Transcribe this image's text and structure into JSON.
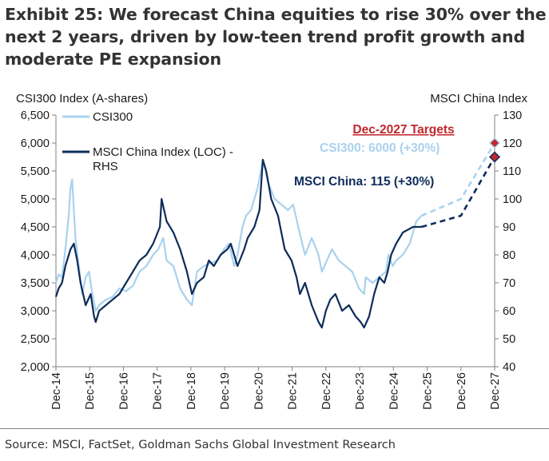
{
  "title_lines": [
    "Exhibit 25: We forecast China equities to rise 30% over the",
    "next 2 years, driven by low-teen trend profit growth and",
    "moderate PE expansion"
  ],
  "source": "Source: MSCI, FactSet, Goldman Sachs Global Investment Research",
  "colors": {
    "csi": "#a9d2ee",
    "msci": "#0e2c5a",
    "target_title": "#c0282d",
    "axis": "#808080"
  },
  "chart_data": {
    "type": "line",
    "left_axis": {
      "label": "CSI300 Index (A-shares)",
      "min": 2000,
      "max": 6500,
      "ticks": [
        "2,000",
        "2,500",
        "3,000",
        "3,500",
        "4,000",
        "4,500",
        "5,000",
        "5,500",
        "6,000",
        "6,500"
      ],
      "tick_values": [
        2000,
        2500,
        3000,
        3500,
        4000,
        4500,
        5000,
        5500,
        6000,
        6500
      ]
    },
    "right_axis": {
      "label": "MSCI China Index",
      "min": 40,
      "max": 130,
      "ticks": [
        "40",
        "50",
        "60",
        "70",
        "80",
        "90",
        "100",
        "110",
        "120",
        "130"
      ],
      "tick_values": [
        40,
        50,
        60,
        70,
        80,
        90,
        100,
        110,
        120,
        130
      ]
    },
    "x_range": [
      2014.92,
      2027.92
    ],
    "x_ticks": [
      "Dec-14",
      "Dec-15",
      "Dec-16",
      "Dec-17",
      "Dec-18",
      "Dec-19",
      "Dec-20",
      "Dec-21",
      "Dec-22",
      "Dec-23",
      "Dec-24",
      "Dec-25",
      "Dec-26",
      "Dec-27"
    ],
    "x_tick_values": [
      2014.92,
      2015.92,
      2016.92,
      2017.92,
      2018.92,
      2019.92,
      2020.92,
      2021.92,
      2022.92,
      2023.92,
      2024.92,
      2025.92,
      2026.92,
      2027.92
    ],
    "legend": [
      "CSI300",
      "MSCI China Index (LOC) - RHS"
    ],
    "legend_position": "top-left",
    "annotations": {
      "targets_title": "Dec-2027 Targets",
      "csi_target": "CSI300: 6000 (+30%)",
      "msci_target": "MSCI China: 115 (+30%)"
    },
    "series": [
      {
        "name": "CSI300",
        "axis": "left",
        "style": "solid",
        "x": [
          2014.92,
          2015.0,
          2015.1,
          2015.2,
          2015.3,
          2015.35,
          2015.4,
          2015.45,
          2015.5,
          2015.6,
          2015.7,
          2015.8,
          2015.9,
          2016.0,
          2016.1,
          2016.2,
          2016.4,
          2016.6,
          2016.8,
          2017.0,
          2017.2,
          2017.4,
          2017.6,
          2017.8,
          2017.95,
          2018.1,
          2018.2,
          2018.4,
          2018.6,
          2018.8,
          2018.95,
          2019.1,
          2019.3,
          2019.5,
          2019.7,
          2019.9,
          2020.05,
          2020.2,
          2020.3,
          2020.45,
          2020.55,
          2020.7,
          2020.9,
          2021.05,
          2021.1,
          2021.2,
          2021.4,
          2021.6,
          2021.8,
          2021.95,
          2022.1,
          2022.3,
          2022.5,
          2022.7,
          2022.8,
          2022.95,
          2023.1,
          2023.3,
          2023.5,
          2023.7,
          2023.9,
          2024.05,
          2024.1,
          2024.3,
          2024.5,
          2024.7,
          2024.77,
          2024.9,
          2025.0,
          2025.2,
          2025.4,
          2025.6,
          2025.75
        ],
        "values": [
          3500,
          3650,
          3600,
          4100,
          4700,
          5200,
          5350,
          4800,
          4300,
          3800,
          3300,
          3600,
          3700,
          3300,
          3000,
          3100,
          3200,
          3250,
          3400,
          3350,
          3450,
          3700,
          3800,
          4000,
          4100,
          4300,
          3900,
          3800,
          3400,
          3200,
          3100,
          3700,
          3800,
          3850,
          3900,
          4100,
          4200,
          3800,
          4000,
          4500,
          4700,
          4800,
          5200,
          5700,
          5600,
          5300,
          5000,
          4900,
          4800,
          4900,
          4500,
          4000,
          4300,
          4000,
          3700,
          3900,
          4100,
          3900,
          3800,
          3700,
          3400,
          3300,
          3600,
          3500,
          3600,
          3700,
          4000,
          3800,
          3900,
          4000,
          4200,
          4600,
          4700
        ]
      },
      {
        "name": "CSI300 forecast",
        "axis": "left",
        "style": "dashed",
        "x": [
          2025.75,
          2026.92,
          2027.92
        ],
        "values": [
          4700,
          5000,
          6000
        ]
      },
      {
        "name": "MSCI China Index (LOC) - RHS",
        "axis": "right",
        "style": "solid",
        "x": [
          2014.92,
          2015.0,
          2015.1,
          2015.2,
          2015.35,
          2015.45,
          2015.55,
          2015.65,
          2015.8,
          2015.95,
          2016.05,
          2016.1,
          2016.2,
          2016.4,
          2016.6,
          2016.8,
          2017.0,
          2017.2,
          2017.4,
          2017.6,
          2017.8,
          2018.0,
          2018.05,
          2018.2,
          2018.4,
          2018.6,
          2018.8,
          2018.95,
          2019.1,
          2019.3,
          2019.45,
          2019.6,
          2019.8,
          2020.0,
          2020.1,
          2020.2,
          2020.3,
          2020.5,
          2020.6,
          2020.8,
          2020.95,
          2021.05,
          2021.15,
          2021.3,
          2021.5,
          2021.7,
          2021.9,
          2022.05,
          2022.15,
          2022.3,
          2022.5,
          2022.7,
          2022.8,
          2022.92,
          2023.05,
          2023.2,
          2023.4,
          2023.6,
          2023.8,
          2023.95,
          2024.05,
          2024.2,
          2024.35,
          2024.5,
          2024.65,
          2024.75,
          2024.85,
          2025.0,
          2025.2,
          2025.5,
          2025.75
        ],
        "values": [
          65,
          68,
          70,
          76,
          82,
          84,
          78,
          70,
          62,
          66,
          58,
          56,
          60,
          62,
          64,
          66,
          70,
          74,
          78,
          80,
          84,
          90,
          100,
          92,
          88,
          82,
          74,
          66,
          70,
          72,
          78,
          76,
          80,
          82,
          84,
          80,
          76,
          82,
          86,
          90,
          96,
          114,
          110,
          100,
          94,
          82,
          78,
          72,
          66,
          70,
          62,
          56,
          54,
          60,
          64,
          66,
          60,
          62,
          58,
          56,
          54,
          58,
          66,
          72,
          70,
          74,
          80,
          84,
          88,
          90,
          90
        ]
      },
      {
        "name": "MSCI China forecast",
        "axis": "right",
        "style": "dashed",
        "x": [
          2025.75,
          2026.92,
          2027.92
        ],
        "values": [
          90,
          94,
          115
        ]
      }
    ],
    "markers": [
      {
        "series": "CSI300",
        "x": 2027.92,
        "value": 6000,
        "axis": "left"
      },
      {
        "series": "MSCI China",
        "x": 2027.92,
        "value": 115,
        "axis": "right"
      }
    ]
  }
}
